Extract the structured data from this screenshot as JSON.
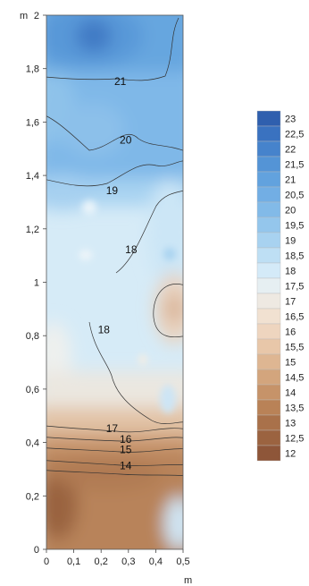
{
  "chart_data": {
    "type": "heatmap",
    "title": "",
    "xlabel": "m",
    "ylabel": "m",
    "xlim": [
      0,
      0.5
    ],
    "ylim": [
      0,
      2
    ],
    "x_ticks": [
      "0",
      "0,1",
      "0,2",
      "0,3",
      "0,4",
      "0,5"
    ],
    "y_ticks": [
      "0",
      "0,2",
      "0,4",
      "0,6",
      "0,8",
      "1",
      "1,2",
      "1,4",
      "1,6",
      "1,8",
      "2"
    ],
    "contour_labels": [
      {
        "text": "21",
        "x": 0.27,
        "y": 1.75
      },
      {
        "text": "20",
        "x": 0.29,
        "y": 1.53
      },
      {
        "text": "19",
        "x": 0.24,
        "y": 1.34
      },
      {
        "text": "18",
        "x": 0.31,
        "y": 1.12
      },
      {
        "text": "18",
        "x": 0.21,
        "y": 0.82
      },
      {
        "text": "17",
        "x": 0.24,
        "y": 0.45
      },
      {
        "text": "16",
        "x": 0.29,
        "y": 0.41
      },
      {
        "text": "15",
        "x": 0.29,
        "y": 0.37
      },
      {
        "text": "14",
        "x": 0.29,
        "y": 0.31
      }
    ],
    "legend": {
      "levels": [
        "23",
        "22,5",
        "22",
        "21,5",
        "21",
        "20,5",
        "20",
        "19,5",
        "19",
        "18,5",
        "18",
        "17,5",
        "17",
        "16,5",
        "16",
        "15,5",
        "15",
        "14,5",
        "14",
        "13,5",
        "13",
        "12,5",
        "12"
      ],
      "colors": [
        "#2f5fae",
        "#3a72c0",
        "#4683cc",
        "#5494d6",
        "#62a2de",
        "#72aee4",
        "#82bae8",
        "#94c6ec",
        "#a8d2f0",
        "#bedff4",
        "#d4eaf8",
        "#e6eff2",
        "#eee9e2",
        "#f1e1d1",
        "#eed5bf",
        "#e8c7a9",
        "#deb692",
        "#d3a57d",
        "#c69369",
        "#b98257",
        "#a9714a",
        "#9b6340",
        "#8e5639"
      ]
    }
  }
}
